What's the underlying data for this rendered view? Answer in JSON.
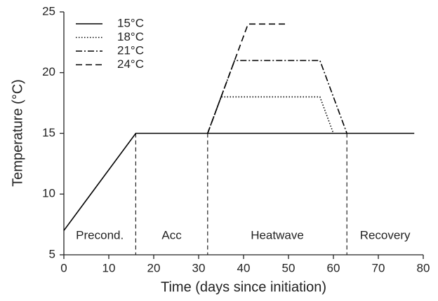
{
  "chart_data": {
    "type": "line",
    "x_label": "Time (days since initiation)",
    "y_label": "Temperature (°C)",
    "series": [
      {
        "name": "15°C",
        "color": "#000000",
        "dash": "solid",
        "x": [
          0,
          16,
          78
        ],
        "values": [
          7,
          15,
          15
        ]
      },
      {
        "name": "18°C",
        "color": "#000000",
        "dash": "dotted",
        "x": [
          32,
          35,
          57,
          60
        ],
        "values": [
          15,
          18,
          18,
          15
        ]
      },
      {
        "name": "21°C",
        "color": "#000000",
        "dash": "dashdot",
        "x": [
          32,
          38,
          57,
          63
        ],
        "values": [
          15,
          21,
          21,
          15
        ]
      },
      {
        "name": "24°C",
        "color": "#000000",
        "dash": "dashed",
        "x": [
          32,
          41,
          50
        ],
        "values": [
          15,
          24,
          24
        ]
      }
    ],
    "phase_boundaries": [
      16,
      32,
      63
    ],
    "phase_labels": [
      "Precond.",
      "Acc",
      "Heatwave",
      "Recovery"
    ],
    "xlim": [
      0,
      80
    ],
    "xticks": [
      0,
      10,
      20,
      30,
      40,
      50,
      60,
      70,
      80
    ],
    "ylim": [
      5,
      25
    ],
    "yticks": [
      5,
      10,
      15,
      20,
      25
    ],
    "grid": false,
    "legend": "top-left"
  }
}
